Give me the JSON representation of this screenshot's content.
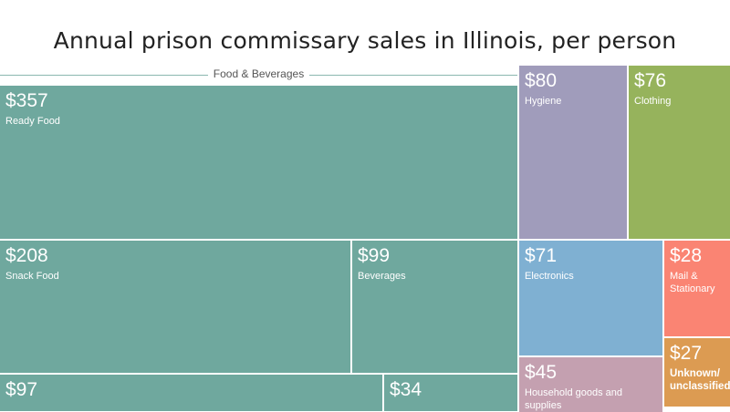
{
  "chart_data": {
    "type": "treemap",
    "title": "Annual prison commissary sales in Illinois, per person",
    "groups": [
      {
        "name": "Food & Beverages"
      }
    ],
    "items": [
      {
        "label": "Ready Food",
        "value_label": "$357",
        "value": 357,
        "group": "Food & Beverages",
        "color": "#6fa89e"
      },
      {
        "label": "Snack Food",
        "value_label": "$208",
        "value": 208,
        "group": "Food & Beverages",
        "color": "#6fa89e"
      },
      {
        "label": "Beverages",
        "value_label": "$99",
        "value": 99,
        "group": "Food & Beverages",
        "color": "#6fa89e"
      },
      {
        "label": "",
        "value_label": "$97",
        "value": 97,
        "group": "Food & Beverages",
        "color": "#6fa89e"
      },
      {
        "label": "",
        "value_label": "$34",
        "value": 34,
        "group": "Food & Beverages",
        "color": "#6fa89e"
      },
      {
        "label": "Hygiene",
        "value_label": "$80",
        "value": 80,
        "color": "#a09cbb"
      },
      {
        "label": "Clothing",
        "value_label": "$76",
        "value": 76,
        "color": "#96b35c"
      },
      {
        "label": "Electronics",
        "value_label": "$71",
        "value": 71,
        "color": "#7fb0d2"
      },
      {
        "label": "Mail & Stationary",
        "value_label": "$28",
        "value": 28,
        "color": "#fa8473"
      },
      {
        "label": "Household goods and supplies",
        "value_label": "$45",
        "value": 45,
        "color": "#c4a0b0"
      },
      {
        "label": "Unknown/ unclassified",
        "value_label": "$27",
        "value": 27,
        "color": "#dc9b52"
      }
    ]
  }
}
